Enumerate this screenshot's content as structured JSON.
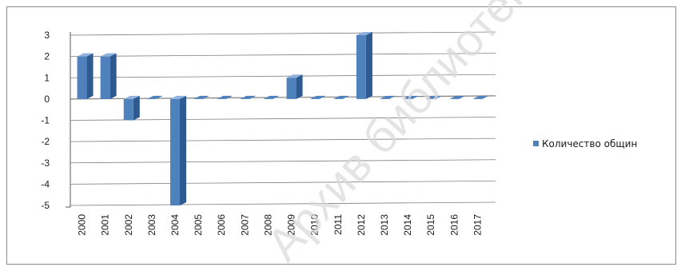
{
  "chart_data": {
    "type": "bar",
    "title": "",
    "xlabel": "",
    "ylabel": "",
    "categories": [
      "2000",
      "2001",
      "2002",
      "2003",
      "2004",
      "2005",
      "2006",
      "2007",
      "2008",
      "2009",
      "2010",
      "2011",
      "2012",
      "2013",
      "2014",
      "2015",
      "2016",
      "2017"
    ],
    "series": [
      {
        "name": "Количество общин",
        "values": [
          2,
          2,
          -1,
          0,
          -5,
          0,
          0,
          0,
          0,
          1,
          0,
          0,
          3,
          0,
          0,
          0,
          0,
          0
        ]
      }
    ],
    "ylim": [
      -5,
      3
    ],
    "yticks": [
      3,
      2,
      1,
      0,
      -1,
      -2,
      -3,
      -4,
      -5
    ],
    "grid": true,
    "legend_position": "right",
    "style": "3d-column"
  },
  "colors": {
    "bar_front": "#4f81bd",
    "bar_side": "#2e5a92",
    "bar_top": "#8fb0dc",
    "grid": "#7f7f7f",
    "axis": "#595959",
    "frame": "#8c8c8c",
    "watermark": "#d9d9d9"
  },
  "watermark": "Архив библиотеки МГ"
}
